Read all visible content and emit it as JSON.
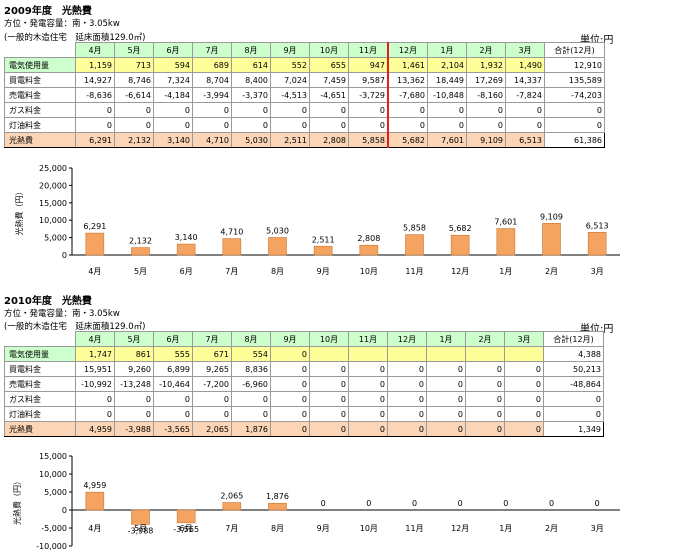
{
  "months": [
    "4月",
    "5月",
    "6月",
    "7月",
    "8月",
    "9月",
    "10月",
    "11月",
    "12月",
    "1月",
    "2月",
    "3月"
  ],
  "total_header": "合計(12月)",
  "unit_label": "単位:円",
  "row_labels": [
    "電気使用量",
    "買電料金",
    "売電料金",
    "ガス料金",
    "灯油料金",
    "光熱費"
  ],
  "sections": [
    {
      "title": "2009年度　光熱費",
      "subtitle1": "方位・発電容量：南・3.05kw",
      "subtitle2": "(一般的木造住宅　延床面積129.0㎡)",
      "rows": [
        {
          "values": [
            "1,159",
            "713",
            "594",
            "689",
            "614",
            "552",
            "655",
            "947",
            "1,461",
            "2,104",
            "1,932",
            "1,490"
          ],
          "total": "12,910"
        },
        {
          "values": [
            "14,927",
            "8,746",
            "7,324",
            "8,704",
            "8,400",
            "7,024",
            "7,459",
            "9,587",
            "13,362",
            "18,449",
            "17,269",
            "14,337"
          ],
          "total": "135,589"
        },
        {
          "values": [
            "-8,636",
            "-6,614",
            "-4,184",
            "-3,994",
            "-3,370",
            "-4,513",
            "-4,651",
            "-3,729",
            "-7,680",
            "-10,848",
            "-8,160",
            "-7,824"
          ],
          "total": "-74,203"
        },
        {
          "values": [
            "0",
            "0",
            "0",
            "0",
            "0",
            "0",
            "0",
            "0",
            "0",
            "0",
            "0",
            "0"
          ],
          "total": "0"
        },
        {
          "values": [
            "0",
            "0",
            "0",
            "0",
            "0",
            "0",
            "0",
            "0",
            "0",
            "0",
            "0",
            "0"
          ],
          "total": "0"
        },
        {
          "values": [
            "6,291",
            "2,132",
            "3,140",
            "4,710",
            "5,030",
            "2,511",
            "2,808",
            "5,858",
            "5,682",
            "7,601",
            "9,109",
            "6,513"
          ],
          "total": "61,386"
        }
      ]
    },
    {
      "title": "2010年度　光熱費",
      "subtitle1": "方位・発電容量：南・3.05kw",
      "subtitle2": "(一般的木造住宅　延床面積129.0㎡)",
      "rows": [
        {
          "values": [
            "1,747",
            "861",
            "555",
            "671",
            "554",
            "0",
            "",
            "",
            "",
            "",
            "",
            ""
          ],
          "total": "4,388"
        },
        {
          "values": [
            "15,951",
            "9,260",
            "6,899",
            "9,265",
            "8,836",
            "0",
            "0",
            "0",
            "0",
            "0",
            "0",
            "0"
          ],
          "total": "50,213"
        },
        {
          "values": [
            "-10,992",
            "-13,248",
            "-10,464",
            "-7,200",
            "-6,960",
            "0",
            "0",
            "0",
            "0",
            "0",
            "0",
            "0"
          ],
          "total": "-48,864"
        },
        {
          "values": [
            "0",
            "0",
            "0",
            "0",
            "0",
            "0",
            "0",
            "0",
            "0",
            "0",
            "0",
            "0"
          ],
          "total": "0"
        },
        {
          "values": [
            "0",
            "0",
            "0",
            "0",
            "0",
            "0",
            "0",
            "0",
            "0",
            "0",
            "0",
            "0"
          ],
          "total": "0"
        },
        {
          "values": [
            "4,959",
            "-3,988",
            "-3,565",
            "2,065",
            "1,876",
            "0",
            "0",
            "0",
            "0",
            "0",
            "0",
            "0"
          ],
          "total": "1,349"
        }
      ]
    }
  ],
  "colors": {
    "bar_fill": "#f4a460",
    "bar_stroke": "#c87533",
    "header_green": "#ccffcc",
    "elec_yellow": "#ffff99",
    "heat_peach": "#fbd5b5",
    "divider_red": "#e02020"
  },
  "chart_data": [
    {
      "type": "bar",
      "title": "",
      "ylabel": "光熱費（円）",
      "xlabel": "",
      "categories": [
        "4月",
        "5月",
        "6月",
        "7月",
        "8月",
        "9月",
        "10月",
        "11月",
        "12月",
        "1月",
        "2月",
        "3月"
      ],
      "values": [
        6291,
        2132,
        3140,
        4710,
        5030,
        2511,
        2808,
        5858,
        5682,
        7601,
        9109,
        6513
      ],
      "labels": [
        "6,291",
        "2,132",
        "3,140",
        "4,710",
        "5,030",
        "2,511",
        "2,808",
        "5,858",
        "5,682",
        "7,601",
        "9,109",
        "6,513"
      ],
      "ylim": [
        0,
        25000
      ],
      "yticks": [
        0,
        5000,
        10000,
        15000,
        20000,
        25000
      ],
      "ytick_labels": [
        "0",
        "5,000",
        "10,000",
        "15,000",
        "20,000",
        "25,000"
      ],
      "grid": false,
      "legend": "none"
    },
    {
      "type": "bar",
      "title": "",
      "ylabel": "光熱費（円）",
      "xlabel": "",
      "categories": [
        "4月",
        "5月",
        "6月",
        "7月",
        "8月",
        "9月",
        "10月",
        "11月",
        "12月",
        "1月",
        "2月",
        "3月"
      ],
      "values": [
        4959,
        -3988,
        -3565,
        2065,
        1876,
        0,
        0,
        0,
        0,
        0,
        0,
        0
      ],
      "labels": [
        "4,959",
        "-3,988",
        "-3,565",
        "2,065",
        "1,876",
        "0",
        "0",
        "0",
        "0",
        "0",
        "0",
        "0"
      ],
      "ylim": [
        -10000,
        15000
      ],
      "yticks": [
        -10000,
        -5000,
        0,
        5000,
        10000,
        15000
      ],
      "ytick_labels": [
        "-10,000",
        "-5,000",
        "0",
        "5,000",
        "10,000",
        "15,000"
      ],
      "grid": false,
      "legend": "none"
    }
  ]
}
